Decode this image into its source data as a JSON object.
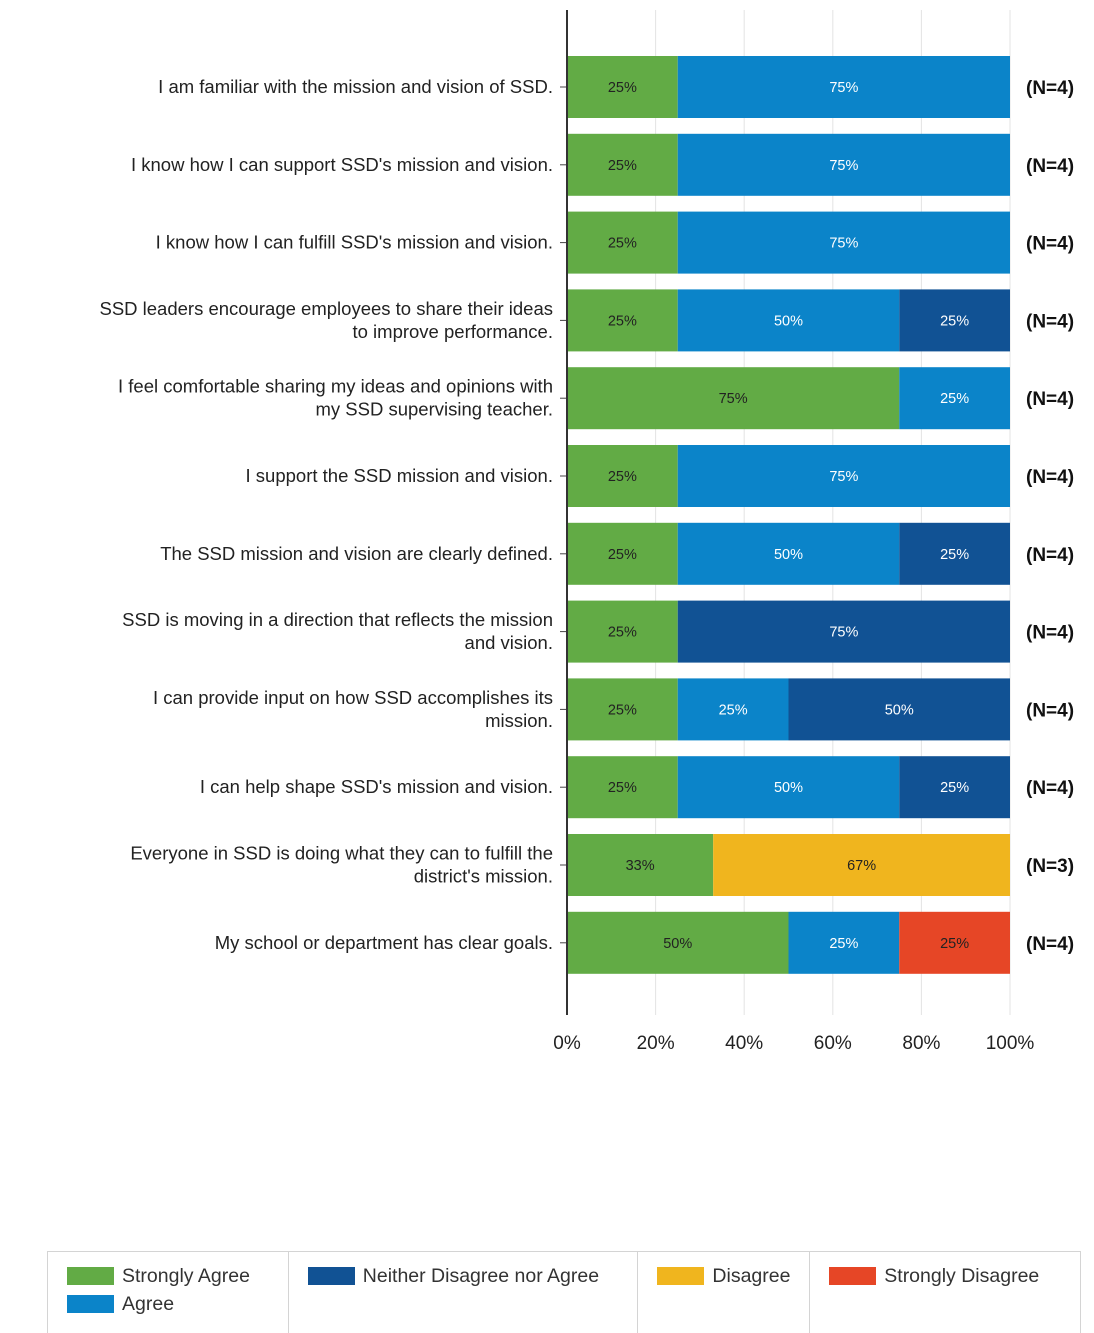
{
  "chart_data": {
    "type": "bar",
    "orientation": "horizontal",
    "stacked": "100%",
    "categories": [
      "I am familiar with the mission and vision of SSD.",
      "I know how I can support SSD's mission and vision.",
      "I know how I can fulfill SSD's mission and vision.",
      "SSD leaders encourage employees to share their ideas to improve performance.",
      "I feel comfortable sharing my ideas and opinions with my SSD supervising teacher.",
      "I support the SSD mission and vision.",
      "The SSD mission and vision are clearly defined.",
      "SSD is moving in a direction that reflects the mission and vision.",
      "I can provide input on how SSD accomplishes its mission.",
      "I can help shape SSD's mission and vision.",
      "Everyone in SSD is doing what they can to fulfill the district's mission.",
      "My school or department has clear goals."
    ],
    "category_lines": [
      [
        "I am familiar with the mission and vision of SSD."
      ],
      [
        "I know how I can support SSD's mission and vision."
      ],
      [
        "I know how I can fulfill SSD's mission and vision."
      ],
      [
        "SSD leaders encourage employees to share their ideas",
        "to improve performance."
      ],
      [
        "I feel comfortable sharing my ideas and opinions with",
        "my SSD supervising teacher."
      ],
      [
        "I support the SSD mission and vision."
      ],
      [
        "The SSD mission and vision are clearly defined."
      ],
      [
        "SSD is moving in a direction that reflects the mission",
        "and vision."
      ],
      [
        "I can provide input on how SSD accomplishes its",
        "mission."
      ],
      [
        "I can help shape SSD's mission and vision."
      ],
      [
        "Everyone in SSD is doing what they can to fulfill the",
        "district's mission."
      ],
      [
        "My school or department has clear goals."
      ]
    ],
    "series": [
      {
        "name": "Strongly Agree",
        "color": "#62ab45",
        "values": [
          25,
          25,
          25,
          25,
          75,
          25,
          25,
          25,
          25,
          25,
          33,
          50
        ]
      },
      {
        "name": "Agree",
        "color": "#0b84c9",
        "values": [
          75,
          75,
          75,
          50,
          25,
          75,
          50,
          0,
          25,
          50,
          0,
          25
        ]
      },
      {
        "name": "Neither Disagree nor Agree",
        "color": "#115294",
        "values": [
          0,
          0,
          0,
          25,
          0,
          0,
          25,
          75,
          50,
          25,
          0,
          0
        ]
      },
      {
        "name": "Disagree",
        "color": "#f0b51e",
        "values": [
          0,
          0,
          0,
          0,
          0,
          0,
          0,
          0,
          0,
          0,
          67,
          0
        ]
      },
      {
        "name": "Strongly Disagree",
        "color": "#e64626",
        "values": [
          0,
          0,
          0,
          0,
          0,
          0,
          0,
          0,
          0,
          0,
          0,
          25
        ]
      }
    ],
    "n_labels": [
      "(N=4)",
      "(N=4)",
      "(N=4)",
      "(N=4)",
      "(N=4)",
      "(N=4)",
      "(N=4)",
      "(N=4)",
      "(N=4)",
      "(N=4)",
      "(N=3)",
      "(N=4)"
    ],
    "xlim": [
      0,
      100
    ],
    "xticks": [
      "0%",
      "20%",
      "40%",
      "60%",
      "80%",
      "100%"
    ],
    "grid": true,
    "legend_position": "bottom"
  },
  "legend": {
    "columns": [
      [
        "Strongly Agree",
        "Agree"
      ],
      [
        "Neither Disagree nor Agree"
      ],
      [
        "Disagree"
      ],
      [
        "Strongly Disagree"
      ]
    ]
  }
}
